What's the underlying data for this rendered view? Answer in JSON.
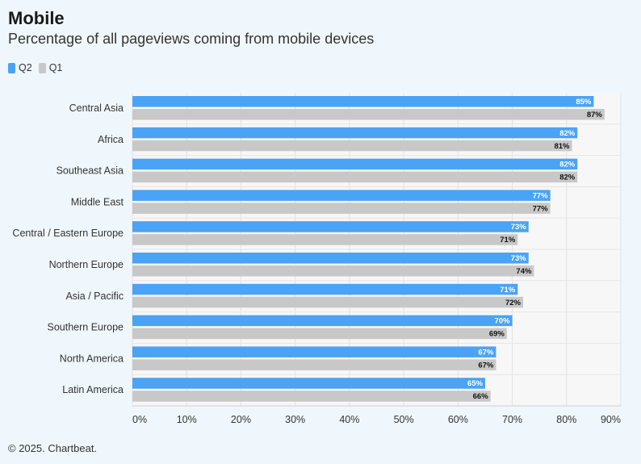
{
  "header": {
    "title": "Mobile",
    "subtitle": "Percentage of all pageviews coming from mobile devices"
  },
  "footer": {
    "credit": "© 2025. Chartbeat."
  },
  "colors": {
    "q2": "#4aa3f5",
    "q1": "#c8c8c8",
    "plot_bg": "#f7f7f7"
  },
  "chart_data": {
    "type": "bar",
    "orientation": "horizontal",
    "categories": [
      "Central Asia",
      "Africa",
      "Southeast Asia",
      "Middle East",
      "Central / Eastern Europe",
      "Northern Europe",
      "Asia / Pacific",
      "Southern Europe",
      "North America",
      "Latin America"
    ],
    "series": [
      {
        "name": "Q2",
        "values": [
          85,
          82,
          82,
          77,
          73,
          73,
          71,
          70,
          67,
          65
        ],
        "labels": [
          "85%",
          "82%",
          "82%",
          "77%",
          "73%",
          "73%",
          "71%",
          "70%",
          "67%",
          "65%"
        ]
      },
      {
        "name": "Q1",
        "values": [
          87,
          81,
          82,
          77,
          71,
          74,
          72,
          69,
          67,
          66
        ],
        "labels": [
          "87%",
          "81%",
          "82%",
          "77%",
          "71%",
          "74%",
          "72%",
          "69%",
          "67%",
          "66%"
        ]
      }
    ],
    "xlim": [
      0,
      90
    ],
    "xticks": [
      0,
      10,
      20,
      30,
      40,
      50,
      60,
      70,
      80,
      90
    ],
    "xtick_labels": [
      "0%",
      "10%",
      "20%",
      "30%",
      "40%",
      "50%",
      "60%",
      "70%",
      "80%",
      "90%"
    ],
    "grid": true,
    "legend_position": "top-left"
  }
}
